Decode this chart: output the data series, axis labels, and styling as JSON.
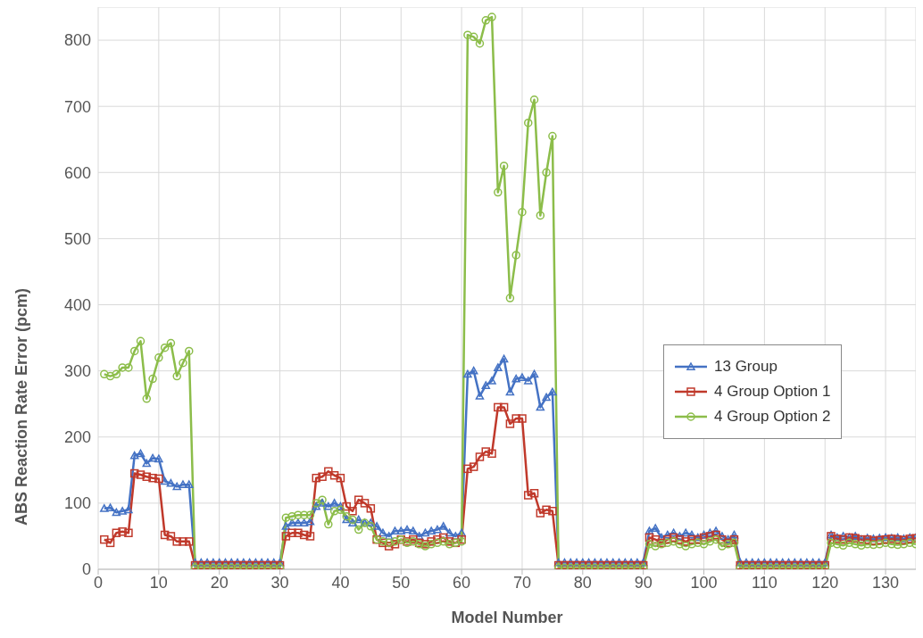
{
  "chart_data": {
    "type": "line",
    "xlabel": "Model Number",
    "ylabel": "ABS Reaction Rate Error (pcm)",
    "x": [
      1,
      2,
      3,
      4,
      5,
      6,
      7,
      8,
      9,
      10,
      11,
      12,
      13,
      14,
      15,
      16,
      17,
      18,
      19,
      20,
      21,
      22,
      23,
      24,
      25,
      26,
      27,
      28,
      29,
      30,
      31,
      32,
      33,
      34,
      35,
      36,
      37,
      38,
      39,
      40,
      41,
      42,
      43,
      44,
      45,
      46,
      47,
      48,
      49,
      50,
      51,
      52,
      53,
      54,
      55,
      56,
      57,
      58,
      59,
      60,
      61,
      62,
      63,
      64,
      65,
      66,
      67,
      68,
      69,
      70,
      71,
      72,
      73,
      74,
      75,
      76,
      77,
      78,
      79,
      80,
      81,
      82,
      83,
      84,
      85,
      86,
      87,
      88,
      89,
      90,
      91,
      92,
      93,
      94,
      95,
      96,
      97,
      98,
      99,
      100,
      101,
      102,
      103,
      104,
      105,
      106,
      107,
      108,
      109,
      110,
      111,
      112,
      113,
      114,
      115,
      116,
      117,
      118,
      119,
      120,
      121,
      122,
      123,
      124,
      125,
      126,
      127,
      128,
      129,
      130,
      131,
      132,
      133,
      134,
      135
    ],
    "series": [
      {
        "name": "13 Group",
        "color": "#4472c4",
        "marker": "triangle",
        "values": [
          92,
          93,
          86,
          88,
          90,
          172,
          175,
          160,
          168,
          167,
          133,
          130,
          125,
          128,
          128,
          10,
          10,
          10,
          10,
          10,
          10,
          10,
          10,
          10,
          10,
          10,
          10,
          10,
          10,
          10,
          65,
          70,
          70,
          70,
          72,
          95,
          100,
          95,
          100,
          95,
          75,
          70,
          75,
          70,
          70,
          65,
          55,
          50,
          58,
          58,
          60,
          58,
          50,
          55,
          58,
          60,
          65,
          55,
          50,
          55,
          295,
          300,
          262,
          278,
          285,
          305,
          318,
          268,
          288,
          290,
          285,
          295,
          245,
          260,
          268,
          10,
          10,
          10,
          10,
          10,
          10,
          10,
          10,
          10,
          10,
          10,
          10,
          10,
          10,
          10,
          58,
          62,
          48,
          52,
          55,
          50,
          55,
          52,
          48,
          52,
          55,
          58,
          50,
          45,
          52,
          10,
          10,
          10,
          10,
          10,
          10,
          10,
          10,
          10,
          10,
          10,
          10,
          10,
          10,
          10,
          52,
          48,
          50,
          48,
          50,
          45,
          47,
          46,
          47,
          48,
          47,
          48,
          46,
          48,
          48
        ]
      },
      {
        "name": "4 Group Option 1",
        "color": "#c0392b",
        "marker": "square",
        "values": [
          45,
          40,
          55,
          57,
          55,
          145,
          143,
          140,
          138,
          137,
          52,
          50,
          42,
          42,
          42,
          6,
          6,
          6,
          6,
          6,
          6,
          6,
          6,
          6,
          6,
          6,
          6,
          6,
          6,
          6,
          50,
          55,
          55,
          52,
          50,
          138,
          140,
          148,
          142,
          138,
          95,
          88,
          105,
          100,
          92,
          45,
          40,
          35,
          38,
          45,
          42,
          45,
          40,
          38,
          42,
          45,
          48,
          42,
          40,
          45,
          152,
          155,
          170,
          178,
          175,
          245,
          245,
          220,
          228,
          228,
          112,
          115,
          85,
          90,
          88,
          6,
          6,
          6,
          6,
          6,
          6,
          6,
          6,
          6,
          6,
          6,
          6,
          6,
          6,
          6,
          48,
          45,
          40,
          45,
          48,
          45,
          42,
          45,
          45,
          48,
          50,
          52,
          45,
          40,
          45,
          6,
          6,
          6,
          6,
          6,
          6,
          6,
          6,
          6,
          6,
          6,
          6,
          6,
          6,
          6,
          50,
          46,
          45,
          48,
          47,
          45,
          45,
          43,
          44,
          45,
          46,
          45,
          44,
          46,
          47
        ]
      },
      {
        "name": "4 Group Option 2",
        "color": "#8cbd4a",
        "marker": "circle",
        "values": [
          295,
          292,
          295,
          305,
          305,
          330,
          345,
          258,
          288,
          320,
          335,
          342,
          292,
          312,
          330,
          2,
          2,
          2,
          2,
          2,
          2,
          2,
          2,
          2,
          2,
          2,
          2,
          2,
          2,
          2,
          78,
          80,
          82,
          82,
          82,
          100,
          105,
          68,
          88,
          90,
          80,
          75,
          60,
          70,
          65,
          45,
          42,
          40,
          42,
          45,
          40,
          42,
          38,
          35,
          38,
          40,
          42,
          38,
          40,
          42,
          808,
          805,
          795,
          830,
          835,
          570,
          610,
          410,
          475,
          540,
          675,
          710,
          535,
          600,
          655,
          2,
          2,
          2,
          2,
          2,
          2,
          2,
          2,
          2,
          2,
          2,
          2,
          2,
          2,
          2,
          38,
          35,
          38,
          40,
          42,
          38,
          35,
          38,
          40,
          38,
          42,
          45,
          35,
          38,
          40,
          2,
          2,
          2,
          2,
          2,
          2,
          2,
          2,
          2,
          2,
          2,
          2,
          2,
          2,
          2,
          40,
          38,
          36,
          40,
          38,
          36,
          38,
          37,
          38,
          40,
          38,
          37,
          38,
          40,
          38
        ]
      }
    ],
    "xlim": [
      0,
      135
    ],
    "xticks": [
      0,
      10,
      20,
      30,
      40,
      50,
      60,
      70,
      80,
      90,
      100,
      110,
      120,
      130
    ],
    "ylim": [
      0,
      850
    ],
    "yticks": [
      0,
      100,
      200,
      300,
      400,
      500,
      600,
      700,
      800
    ],
    "grid": true,
    "legend": "right",
    "line_style": "solid"
  }
}
